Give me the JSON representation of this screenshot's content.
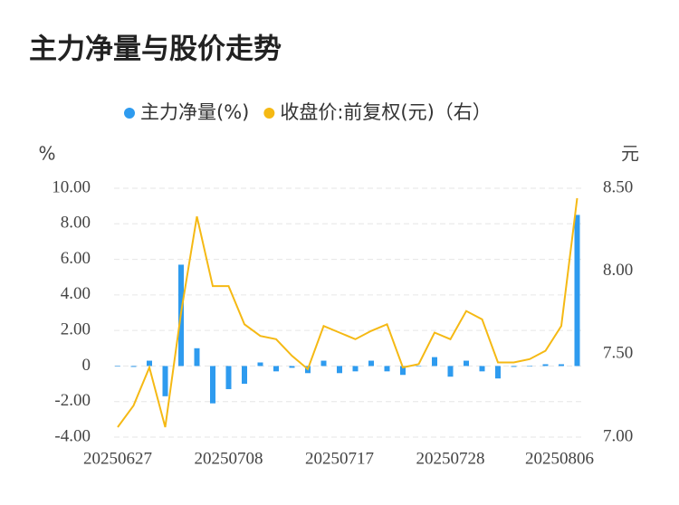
{
  "chart_data": {
    "type": "bar-line",
    "title": "主力净量与股价走势",
    "y_unit": "%",
    "y2_unit": "元",
    "categories": [
      "20250627",
      null,
      null,
      null,
      null,
      null,
      null,
      "20250708",
      null,
      null,
      null,
      null,
      null,
      null,
      "20250717",
      null,
      null,
      null,
      null,
      null,
      null,
      "20250728",
      null,
      null,
      null,
      null,
      null,
      null,
      "20250806",
      null
    ],
    "series": [
      {
        "name": "主力净量(%)",
        "type": "bar",
        "color": "#2e9bef",
        "values": [
          0,
          -0.05,
          0.3,
          -1.7,
          5.7,
          1.0,
          -2.1,
          -1.3,
          -1.0,
          0.2,
          -0.3,
          -0.1,
          -0.4,
          0.3,
          -0.4,
          -0.3,
          0.3,
          -0.3,
          -0.5,
          0,
          0.5,
          -0.6,
          0.3,
          -0.3,
          -0.7,
          -0.05,
          0,
          0.1,
          0.1,
          8.5
        ]
      },
      {
        "name": "收盘价:前复权(元)（右）",
        "type": "line",
        "axis": "y2",
        "color": "#f5b914",
        "values": [
          7.06,
          7.19,
          7.42,
          7.06,
          7.75,
          8.33,
          7.91,
          7.91,
          7.68,
          7.61,
          7.59,
          7.49,
          7.41,
          7.67,
          7.63,
          7.59,
          7.64,
          7.68,
          7.42,
          7.44,
          7.63,
          7.59,
          7.76,
          7.71,
          7.45,
          7.45,
          7.47,
          7.52,
          7.67,
          8.44
        ]
      }
    ],
    "ylim": [
      -4,
      10
    ],
    "yticks": [
      {
        "value": -4,
        "label": "-4.00"
      },
      {
        "value": -2,
        "label": "-2.00"
      },
      0,
      {
        "value": 2,
        "label": "2.00"
      },
      {
        "value": 4,
        "label": "4.00"
      },
      {
        "value": 6,
        "label": "6.00"
      },
      {
        "value": 8,
        "label": "8.00"
      },
      {
        "value": 10,
        "label": "10.00"
      }
    ],
    "y2lim": [
      7,
      8.5
    ],
    "y2ticks": [
      {
        "value": 7,
        "label": "7.00"
      },
      {
        "value": 7.5,
        "label": "7.50"
      },
      {
        "value": 8,
        "label": "8.00"
      },
      {
        "value": 8.5,
        "label": "8.50"
      }
    ],
    "grid": true,
    "legend": "top"
  }
}
